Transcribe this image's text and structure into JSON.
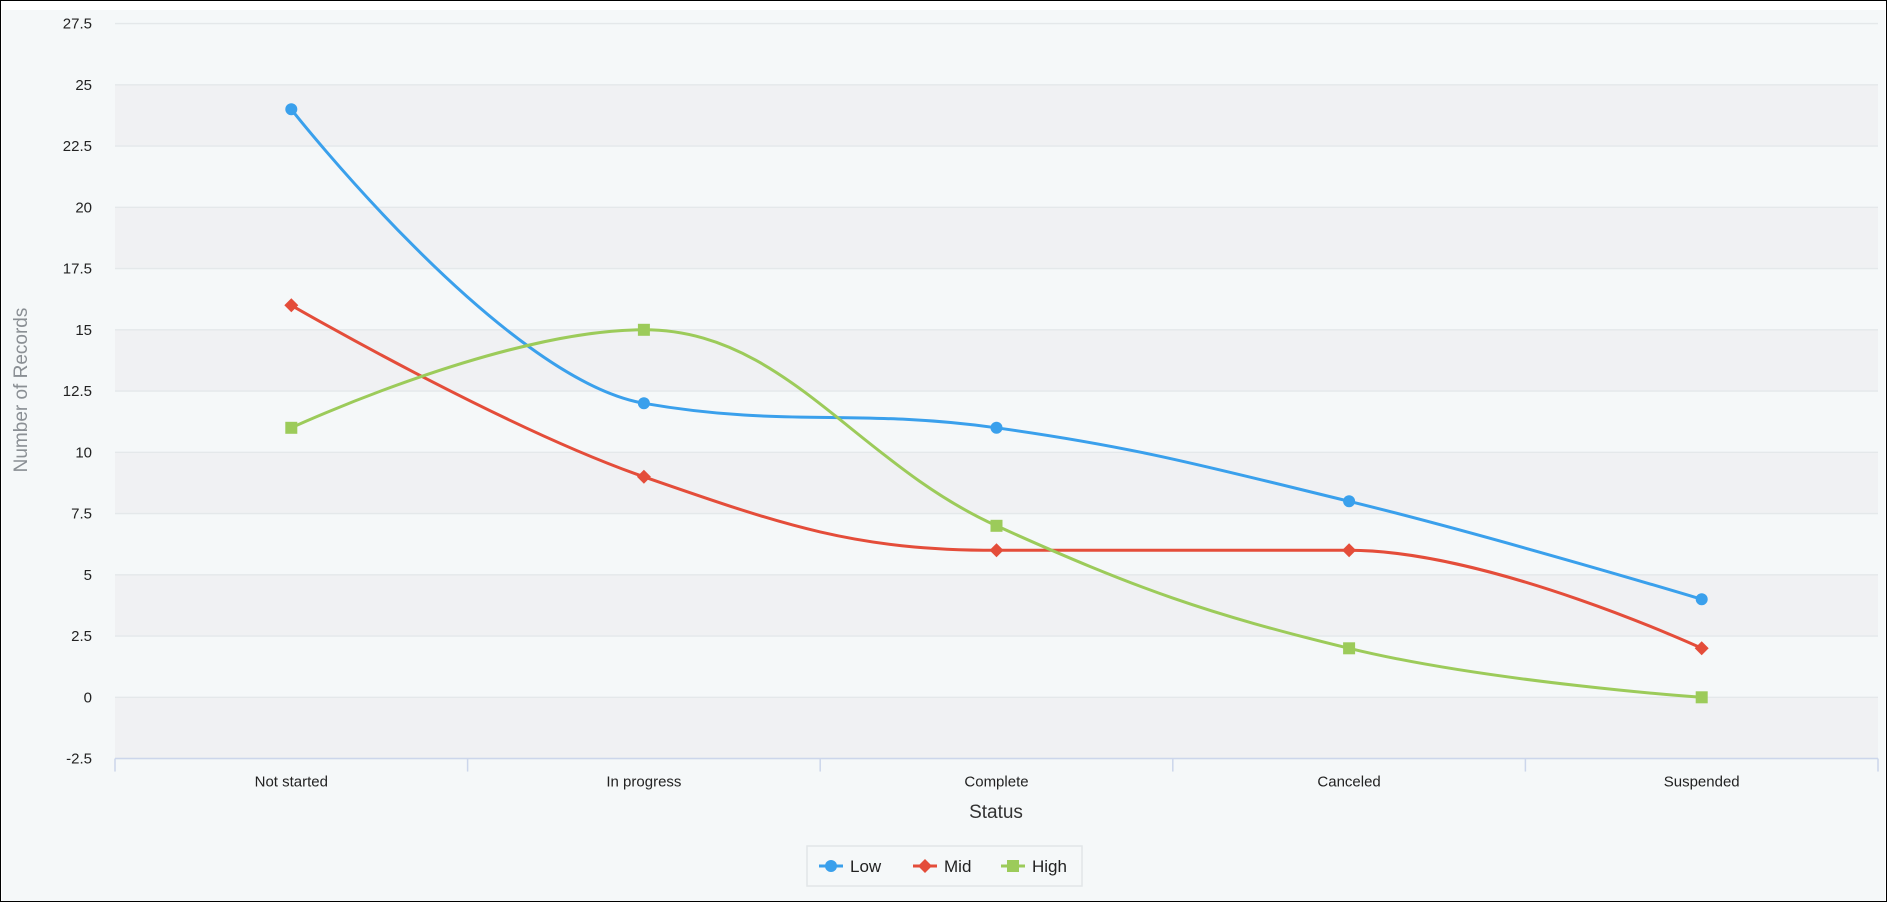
{
  "chart_data": {
    "type": "line",
    "title": "",
    "xlabel": "Status",
    "ylabel": "Number of Records",
    "categories": [
      "Not started",
      "In progress",
      "Complete",
      "Canceled",
      "Suspended"
    ],
    "series": [
      {
        "name": "Low",
        "color": "#3aa0ec",
        "marker": "circle",
        "values": [
          24,
          12,
          11,
          8,
          4
        ]
      },
      {
        "name": "Mid",
        "color": "#e44d3a",
        "marker": "diamond",
        "values": [
          16,
          9,
          6,
          6,
          2
        ]
      },
      {
        "name": "High",
        "color": "#9ccb5a",
        "marker": "square",
        "values": [
          11,
          15,
          7,
          2,
          0
        ]
      }
    ],
    "ylim": [
      -2.5,
      27.5
    ],
    "yticks": [
      "27.5",
      "25",
      "22.5",
      "20",
      "17.5",
      "15",
      "12.5",
      "10",
      "7.5",
      "5",
      "2.5",
      "0",
      "-2.5"
    ],
    "grid": true,
    "legend_position": "bottom-center",
    "interpolation": "spline"
  },
  "colors": {
    "background": "#f5f8f9",
    "band": "#f0f1f3",
    "gridline": "#e4e8ea",
    "axis": "#ccd6eb"
  }
}
